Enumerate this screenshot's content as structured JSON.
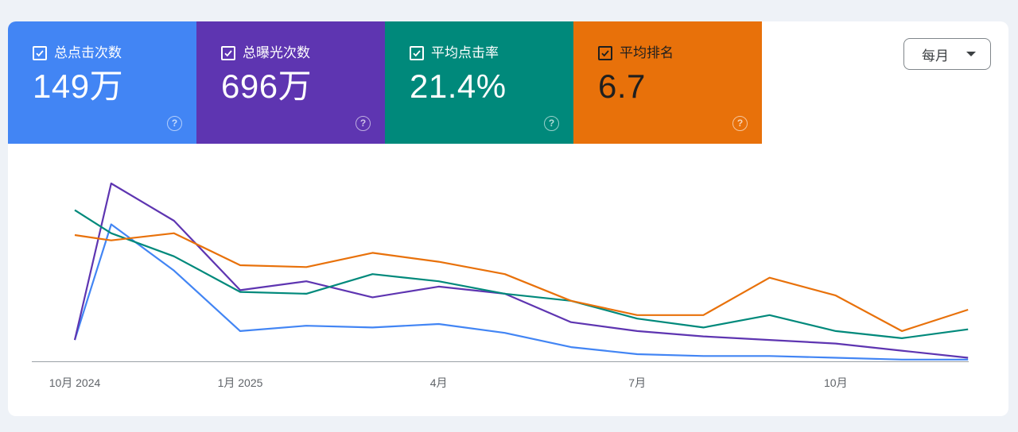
{
  "metrics": [
    {
      "label": "总点击次数",
      "value": "149万",
      "color": "#4285f4",
      "text_color": "#ffffff"
    },
    {
      "label": "总曝光次数",
      "value": "696万",
      "color": "#5e35b1",
      "text_color": "#ffffff"
    },
    {
      "label": "平均点击率",
      "value": "21.4%",
      "color": "#00897b",
      "text_color": "#ffffff"
    },
    {
      "label": "平均排名",
      "value": "6.7",
      "color": "#e8710a",
      "text_color": "#1f1f1f"
    }
  ],
  "period_select": {
    "value": "每月"
  },
  "help_symbol": "?",
  "chart_data": {
    "type": "line",
    "title": "",
    "xlabel": "",
    "ylabel": "",
    "x": [
      "2024-10",
      "2024-11",
      "2024-12",
      "2025-01",
      "2025-02",
      "2025-03",
      "2025-04",
      "2025-05",
      "2025-06",
      "2025-07",
      "2025-08",
      "2025-09",
      "2025-10",
      "2025-11",
      "2025-12"
    ],
    "x_tick_labels": [
      {
        "at": "2024-10",
        "label": "10月 2024"
      },
      {
        "at": "2025-01",
        "label": "1月 2025"
      },
      {
        "at": "2025-04",
        "label": "4月"
      },
      {
        "at": "2025-07",
        "label": "7月"
      },
      {
        "at": "2025-10",
        "label": "10月"
      }
    ],
    "x_positions": [
      0,
      0.55,
      1.5,
      2.5,
      3.5,
      4.5,
      5.5,
      6.5,
      7.5,
      8.5,
      9.5,
      10.5,
      11.5,
      12.5,
      13.5
    ],
    "ylim": [
      0,
      100
    ],
    "gridlines": false,
    "series": [
      {
        "name": "总点击次数",
        "color": "#4285f4",
        "values": [
          12,
          77,
          51,
          17,
          20,
          19,
          21,
          16,
          8,
          4,
          3,
          3,
          2,
          1,
          1
        ]
      },
      {
        "name": "总曝光次数",
        "color": "#5e35b1",
        "values": [
          12,
          100,
          79,
          40,
          45,
          36,
          42,
          38,
          22,
          17,
          14,
          12,
          10,
          6,
          2
        ]
      },
      {
        "name": "平均点击率",
        "color": "#00897b",
        "values": [
          85,
          72,
          59,
          39,
          38,
          49,
          45,
          38,
          34,
          24,
          19,
          26,
          17,
          13,
          18
        ]
      },
      {
        "name": "平均排名",
        "color": "#e8710a",
        "values": [
          71,
          68,
          72,
          54,
          53,
          61,
          56,
          49,
          34,
          26,
          26,
          47,
          37,
          17,
          29
        ]
      }
    ]
  }
}
